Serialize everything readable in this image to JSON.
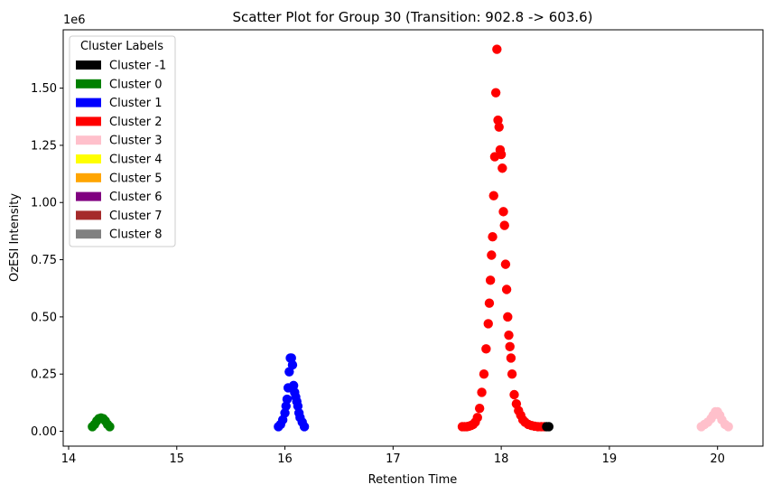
{
  "chart_data": {
    "type": "scatter",
    "title": "Scatter Plot for Group 30 (Transition: 902.8 -> 603.6)",
    "xlabel": "Retention Time",
    "ylabel": "OzESI Intensity",
    "y_offset_label": "1e6",
    "xlim": [
      13.95,
      20.42
    ],
    "ylim": [
      -0.065,
      1.755
    ],
    "xticks": [
      14,
      15,
      16,
      17,
      18,
      19,
      20
    ],
    "xtick_labels": [
      "14",
      "15",
      "16",
      "17",
      "18",
      "19",
      "20"
    ],
    "yticks": [
      0,
      0.25,
      0.5,
      0.75,
      1.0,
      1.25,
      1.5
    ],
    "ytick_labels": [
      "0.00",
      "0.25",
      "0.50",
      "0.75",
      "1.00",
      "1.25",
      "1.50"
    ],
    "grid": false,
    "legend": {
      "title": "Cluster Labels",
      "placement": "top-left",
      "entries": [
        {
          "label": "Cluster -1",
          "color": "#000000"
        },
        {
          "label": "Cluster 0",
          "color": "#008000"
        },
        {
          "label": "Cluster 1",
          "color": "#0000ff"
        },
        {
          "label": "Cluster 2",
          "color": "#ff0000"
        },
        {
          "label": "Cluster 3",
          "color": "#ffc0cb"
        },
        {
          "label": "Cluster 4",
          "color": "#ffff00"
        },
        {
          "label": "Cluster 5",
          "color": "#ffa500"
        },
        {
          "label": "Cluster 6",
          "color": "#800080"
        },
        {
          "label": "Cluster 7",
          "color": "#a52a2a"
        },
        {
          "label": "Cluster 8",
          "color": "#808080"
        }
      ]
    },
    "series": [
      {
        "color": "#008000",
        "x": [
          14.22,
          14.24,
          14.26,
          14.28,
          14.3,
          14.32,
          14.34,
          14.36,
          14.38
        ],
        "y": [
          0.02,
          0.03,
          0.045,
          0.055,
          0.058,
          0.055,
          0.045,
          0.03,
          0.02
        ]
      },
      {
        "color": "#0000ff",
        "x": [
          15.94,
          15.96,
          15.98,
          16.0,
          16.01,
          16.02,
          16.03,
          16.04,
          16.05,
          16.06,
          16.07,
          16.08,
          16.09,
          16.1,
          16.11,
          16.12,
          16.13,
          16.14,
          16.16,
          16.18
        ],
        "y": [
          0.02,
          0.03,
          0.05,
          0.08,
          0.11,
          0.14,
          0.19,
          0.26,
          0.32,
          0.32,
          0.29,
          0.2,
          0.17,
          0.15,
          0.13,
          0.11,
          0.08,
          0.06,
          0.04,
          0.02
        ]
      },
      {
        "color": "#ff0000",
        "x": [
          17.64,
          17.66,
          17.68,
          17.7,
          17.72,
          17.74,
          17.76,
          17.78,
          17.8,
          17.82,
          17.84,
          17.86,
          17.88,
          17.89,
          17.9,
          17.91,
          17.92,
          17.93,
          17.94,
          17.95,
          17.96,
          17.97,
          17.98,
          17.99,
          18.0,
          18.01,
          18.02,
          18.03,
          18.04,
          18.05,
          18.06,
          18.07,
          18.08,
          18.09,
          18.1,
          18.12,
          18.14,
          18.16,
          18.18,
          18.2,
          18.22,
          18.25,
          18.28,
          18.31,
          18.34,
          18.37,
          18.4
        ],
        "y": [
          0.02,
          0.02,
          0.02,
          0.022,
          0.025,
          0.03,
          0.04,
          0.06,
          0.1,
          0.17,
          0.25,
          0.36,
          0.47,
          0.56,
          0.66,
          0.77,
          0.85,
          1.03,
          1.2,
          1.48,
          1.67,
          1.36,
          1.33,
          1.23,
          1.21,
          1.15,
          0.96,
          0.9,
          0.73,
          0.62,
          0.5,
          0.42,
          0.37,
          0.32,
          0.25,
          0.16,
          0.12,
          0.09,
          0.07,
          0.05,
          0.04,
          0.03,
          0.025,
          0.022,
          0.02,
          0.02,
          0.02
        ]
      },
      {
        "color": "#000000",
        "x": [
          18.42,
          18.44
        ],
        "y": [
          0.02,
          0.02
        ]
      },
      {
        "color": "#ffc0cb",
        "x": [
          19.85,
          19.88,
          19.91,
          19.94,
          19.96,
          19.98,
          20.0,
          20.02,
          20.04,
          20.07,
          20.1
        ],
        "y": [
          0.02,
          0.03,
          0.04,
          0.055,
          0.07,
          0.085,
          0.085,
          0.07,
          0.05,
          0.03,
          0.02
        ]
      }
    ]
  }
}
